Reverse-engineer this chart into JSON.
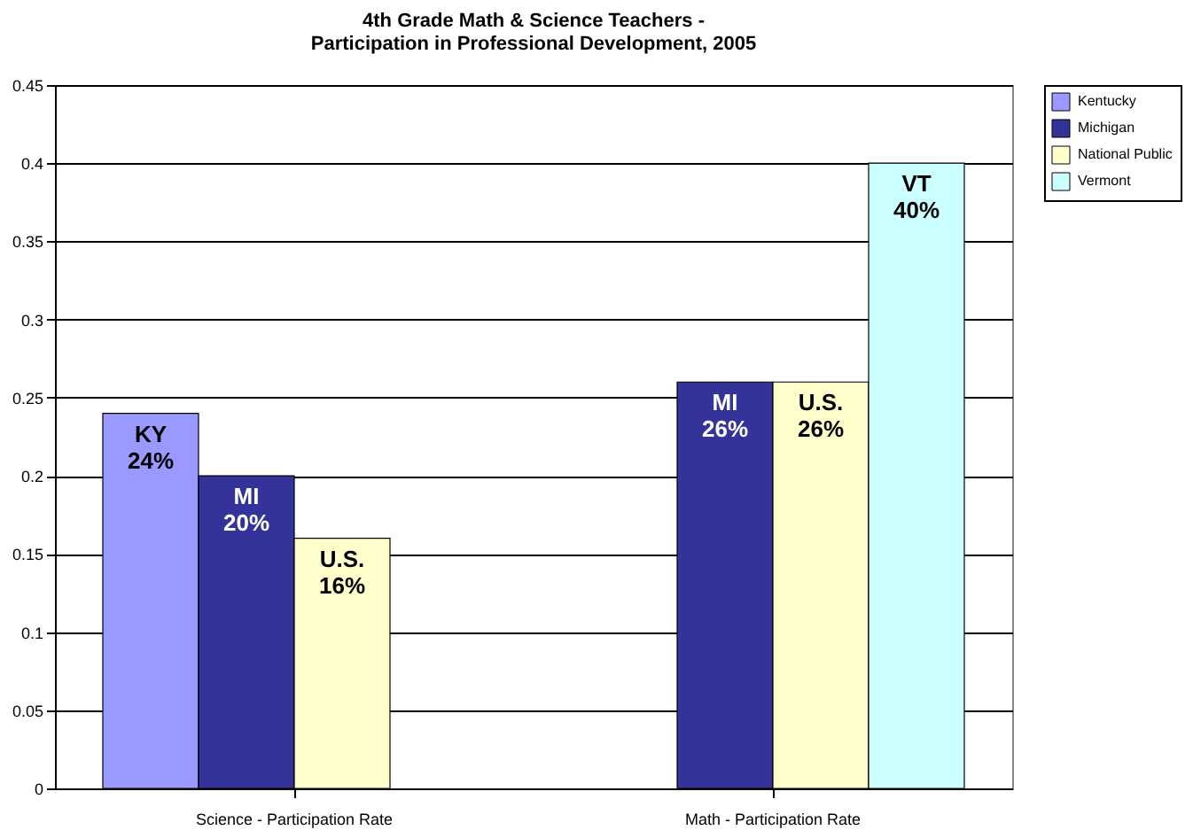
{
  "chart_data": {
    "type": "bar",
    "title": "4th Grade Math & Science Teachers -\nParticipation in Professional Development, 2005",
    "categories": [
      "Science - Participation Rate",
      "Math - Participation Rate"
    ],
    "series": [
      {
        "name": "Kentucky",
        "color": "#9999ff",
        "values": [
          0.24,
          null
        ],
        "value_labels": [
          "KY\n24%",
          null
        ]
      },
      {
        "name": "Michigan",
        "color": "#333399",
        "values": [
          0.2,
          0.26
        ],
        "value_labels": [
          "MI\n20%",
          "MI\n26%"
        ]
      },
      {
        "name": "National Public",
        "color": "#ffffcc",
        "values": [
          0.16,
          0.26
        ],
        "value_labels": [
          "U.S.\n16%",
          "U.S.\n26%"
        ]
      },
      {
        "name": "Vermont",
        "color": "#ccffff",
        "values": [
          null,
          0.4
        ],
        "value_labels": [
          null,
          "VT\n40%"
        ]
      }
    ],
    "ylim": [
      0,
      0.45
    ],
    "yticks": [
      0,
      0.05,
      0.1,
      0.15,
      0.2,
      0.25,
      0.3,
      0.35,
      0.4,
      0.45
    ],
    "grid": "y",
    "legend": "right"
  }
}
